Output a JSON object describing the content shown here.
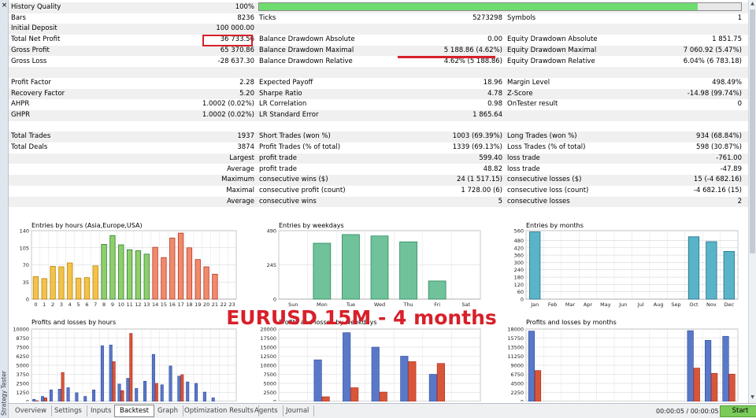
{
  "window": {
    "sidebar_title": "Strategy Tester",
    "close_symbol": "×"
  },
  "history_quality": {
    "label": "History Quality",
    "value": "100%",
    "fill_fraction": 0.91
  },
  "rows": [
    {
      "l1": "Bars",
      "v1": "8236",
      "l2": "Ticks",
      "v2": "5273298",
      "l3": "Symbols",
      "v3": "1"
    },
    {
      "l1": "Initial Deposit",
      "v1": "100 000.00",
      "l2": "",
      "v2": "",
      "l3": "",
      "v3": ""
    },
    {
      "l1": "Total Net Profit",
      "v1": "36 733.56",
      "l2": "Balance Drawdown Absolute",
      "v2": "0.00",
      "l3": "Equity Drawdown Absolute",
      "v3": "1 851.75"
    },
    {
      "l1": "Gross Profit",
      "v1": "65 370.86",
      "l2": "Balance Drawdown Maximal",
      "v2": "5 188.86 (4.62%)",
      "l3": "Equity Drawdown Maximal",
      "v3": "7 060.92 (5.47%)"
    },
    {
      "l1": "Gross Loss",
      "v1": "-28 637.30",
      "l2": "Balance Drawdown Relative",
      "v2": "4.62% (5 188.86)",
      "l3": "Equity Drawdown Relative",
      "v3": "6.04% (6 783.18)"
    },
    {
      "l1": "",
      "v1": "",
      "l2": "",
      "v2": "",
      "l3": "",
      "v3": ""
    },
    {
      "l1": "Profit Factor",
      "v1": "2.28",
      "l2": "Expected Payoff",
      "v2": "18.96",
      "l3": "Margin Level",
      "v3": "498.49%"
    },
    {
      "l1": "Recovery Factor",
      "v1": "5.20",
      "l2": "Sharpe Ratio",
      "v2": "4.78",
      "l3": "Z-Score",
      "v3": "-14.98 (99.74%)"
    },
    {
      "l1": "AHPR",
      "v1": "1.0002 (0.02%)",
      "l2": "LR Correlation",
      "v2": "0.98",
      "l3": "OnTester result",
      "v3": "0"
    },
    {
      "l1": "GHPR",
      "v1": "1.0002 (0.02%)",
      "l2": "LR Standard Error",
      "v2": "1 865.64",
      "l3": "",
      "v3": ""
    },
    {
      "l1": "",
      "v1": "",
      "l2": "",
      "v2": "",
      "l3": "",
      "v3": ""
    },
    {
      "l1": "Total Trades",
      "v1": "1937",
      "l2": "Short Trades (won %)",
      "v2": "1003 (69.39%)",
      "l3": "Long Trades (won %)",
      "v3": "934 (68.84%)"
    },
    {
      "l1": "Total Deals",
      "v1": "3874",
      "l2": "Profit Trades (% of total)",
      "v2": "1339 (69.13%)",
      "l3": "Loss Trades (% of total)",
      "v3": "598 (30.87%)"
    },
    {
      "l1": "",
      "v1": "Largest",
      "l2": "profit trade",
      "v2": "599.40",
      "l3": "loss trade",
      "v3": "-761.00"
    },
    {
      "l1": "",
      "v1": "Average",
      "l2": "profit trade",
      "v2": "48.82",
      "l3": "loss trade",
      "v3": "-47.89"
    },
    {
      "l1": "",
      "v1": "Maximum",
      "l2": "consecutive wins ($)",
      "v2": "24 (1 517.15)",
      "l3": "consecutive losses ($)",
      "v3": "15 (-4 682.16)"
    },
    {
      "l1": "",
      "v1": "Maximal",
      "l2": "consecutive profit (count)",
      "v2": "1 728.00 (6)",
      "l3": "consecutive loss (count)",
      "v3": "-4 682.16 (15)"
    },
    {
      "l1": "",
      "v1": "Average",
      "l2": "consecutive wins",
      "v2": "5",
      "l3": "consecutive losses",
      "v3": "2"
    }
  ],
  "overlay_text": "EURUSD 15M - 4 months",
  "tabs": [
    "Overview",
    "Settings",
    "Inputs",
    "Backtest",
    "Graph",
    "Optimization Results",
    "Agents",
    "Journal"
  ],
  "active_tab": "Backtest",
  "status": {
    "timer": "00:00:05 / 00:00:05",
    "start_label": "Start"
  },
  "colors": {
    "accent_red": "#d8202a",
    "progress_green": "#6fdc6f",
    "start_green": "#7acb5a"
  },
  "chart_data": [
    {
      "type": "bar",
      "title": "Entries by hours (Asia,Europe,USA)",
      "categories": [
        "0",
        "1",
        "2",
        "3",
        "4",
        "5",
        "6",
        "7",
        "8",
        "9",
        "10",
        "11",
        "12",
        "13",
        "14",
        "15",
        "16",
        "17",
        "18",
        "19",
        "20",
        "21",
        "22",
        "23"
      ],
      "values": [
        46,
        42,
        67,
        66,
        74,
        43,
        44,
        68,
        112,
        130,
        111,
        101,
        99,
        92,
        106,
        85,
        125,
        135,
        105,
        81,
        66,
        51,
        0,
        0
      ],
      "ylim": [
        0,
        140
      ],
      "yticks": [
        "140",
        "105",
        "70",
        "35",
        "0"
      ],
      "grid": true
    },
    {
      "type": "bar",
      "title": "Entries by weekdays",
      "categories": [
        "Sun",
        "Mon",
        "Tue",
        "Wed",
        "Thu",
        "Fri",
        "Sat"
      ],
      "values": [
        0,
        400,
        462,
        452,
        410,
        130,
        0
      ],
      "ylim": [
        0,
        490
      ],
      "yticks": [
        "490",
        "245",
        "0"
      ],
      "grid": true
    },
    {
      "type": "bar",
      "title": "Entries by months",
      "categories": [
        "Jan",
        "Feb",
        "Mar",
        "Apr",
        "May",
        "Jun",
        "Jul",
        "Aug",
        "Sep",
        "Oct",
        "Nov",
        "Dec"
      ],
      "values": [
        550,
        0,
        0,
        0,
        0,
        0,
        0,
        0,
        0,
        510,
        470,
        390
      ],
      "ylim": [
        0,
        560
      ],
      "yticks": [
        "560",
        "480",
        "420",
        "360",
        "300",
        "240",
        "180",
        "120",
        "60",
        "0"
      ],
      "grid": true
    },
    {
      "type": "bar",
      "title": "Profits and losses by hours",
      "categories": [
        "0",
        "1",
        "2",
        "3",
        "4",
        "5",
        "6",
        "7",
        "8",
        "9",
        "10",
        "11",
        "12",
        "13",
        "14",
        "15",
        "16",
        "17",
        "18",
        "19",
        "20",
        "21",
        "22",
        "23"
      ],
      "series": [
        {
          "values": [
            300,
            700,
            1600,
            1700,
            1900,
            1200,
            700,
            1600,
            7700,
            7800,
            2400,
            3200,
            1800,
            2800,
            6500,
            2300,
            4900,
            3500,
            2700,
            2500,
            1300,
            500,
            0,
            0
          ]
        },
        {
          "values": [
            100,
            500,
            0,
            4000,
            0,
            0,
            0,
            0,
            0,
            5500,
            1500,
            9400,
            0,
            0,
            2500,
            0,
            0,
            3700,
            0,
            0,
            0,
            0,
            0,
            0
          ]
        }
      ],
      "ylim": [
        0,
        10000
      ],
      "yticks": [
        "10000",
        "8750",
        "7500",
        "6250",
        "5000",
        "3750",
        "2500",
        "1250",
        "0"
      ],
      "grid": true
    },
    {
      "type": "bar",
      "title": "Profits and losses by weekdays",
      "categories": [
        "Sun",
        "Mon",
        "Tue",
        "Wed",
        "Thu",
        "Fri",
        "Sat"
      ],
      "series": [
        {
          "values": [
            0,
            11500,
            19000,
            15000,
            12500,
            7500,
            0
          ]
        },
        {
          "values": [
            0,
            1300,
            3800,
            2600,
            11000,
            10500,
            0
          ]
        }
      ],
      "ylim": [
        0,
        20000
      ],
      "yticks": [
        "20000",
        "17500",
        "15000",
        "12500",
        "10000",
        "7500",
        "5000",
        "2500",
        "0"
      ],
      "grid": true
    },
    {
      "type": "bar",
      "title": "Profits and losses by months",
      "categories": [
        "Jan",
        "Feb",
        "Mar",
        "Apr",
        "May",
        "Jun",
        "Jul",
        "Aug",
        "Sep",
        "Oct",
        "Nov",
        "Dec"
      ],
      "series": [
        {
          "values": [
            17500,
            0,
            0,
            0,
            0,
            0,
            0,
            0,
            0,
            17600,
            15200,
            16200
          ]
        },
        {
          "values": [
            7700,
            0,
            0,
            0,
            0,
            0,
            0,
            0,
            0,
            8300,
            7000,
            6800
          ]
        }
      ],
      "ylim": [
        0,
        18000
      ],
      "yticks": [
        "18000",
        "15750",
        "13500",
        "11250",
        "9000",
        "6750",
        "4500",
        "2250",
        "0"
      ],
      "grid": true
    }
  ]
}
